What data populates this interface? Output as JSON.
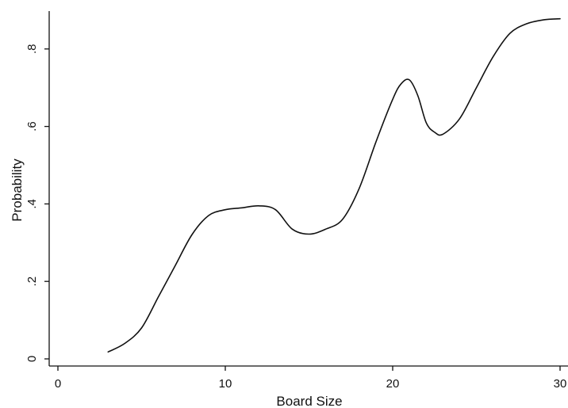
{
  "chart_data": {
    "type": "line",
    "title": "",
    "xlabel": "Board Size",
    "ylabel": "Probability",
    "xlim": [
      0,
      30
    ],
    "ylim": [
      0,
      0.9
    ],
    "x_ticks": [
      0,
      10,
      20,
      30
    ],
    "x_tick_labels": [
      "0",
      "10",
      "20",
      "30"
    ],
    "y_ticks": [
      0,
      0.2,
      0.4,
      0.6,
      0.8
    ],
    "y_tick_labels": [
      "0",
      ".2",
      ".4",
      ".6",
      ".8"
    ],
    "grid": false,
    "legend": "none",
    "series": [
      {
        "color": "#111111",
        "x": [
          3,
          4,
          5,
          6,
          7,
          8,
          9,
          10,
          11,
          12,
          13,
          14,
          15,
          16,
          17,
          18,
          19,
          20,
          20.5,
          21,
          21.5,
          22,
          22.5,
          23,
          24,
          25,
          26,
          27,
          28,
          29,
          30
        ],
        "y": [
          0.018,
          0.04,
          0.08,
          0.16,
          0.24,
          0.32,
          0.37,
          0.385,
          0.39,
          0.395,
          0.385,
          0.335,
          0.322,
          0.335,
          0.36,
          0.44,
          0.56,
          0.67,
          0.71,
          0.72,
          0.68,
          0.61,
          0.585,
          0.58,
          0.62,
          0.7,
          0.78,
          0.84,
          0.865,
          0.875,
          0.878
        ]
      }
    ]
  }
}
